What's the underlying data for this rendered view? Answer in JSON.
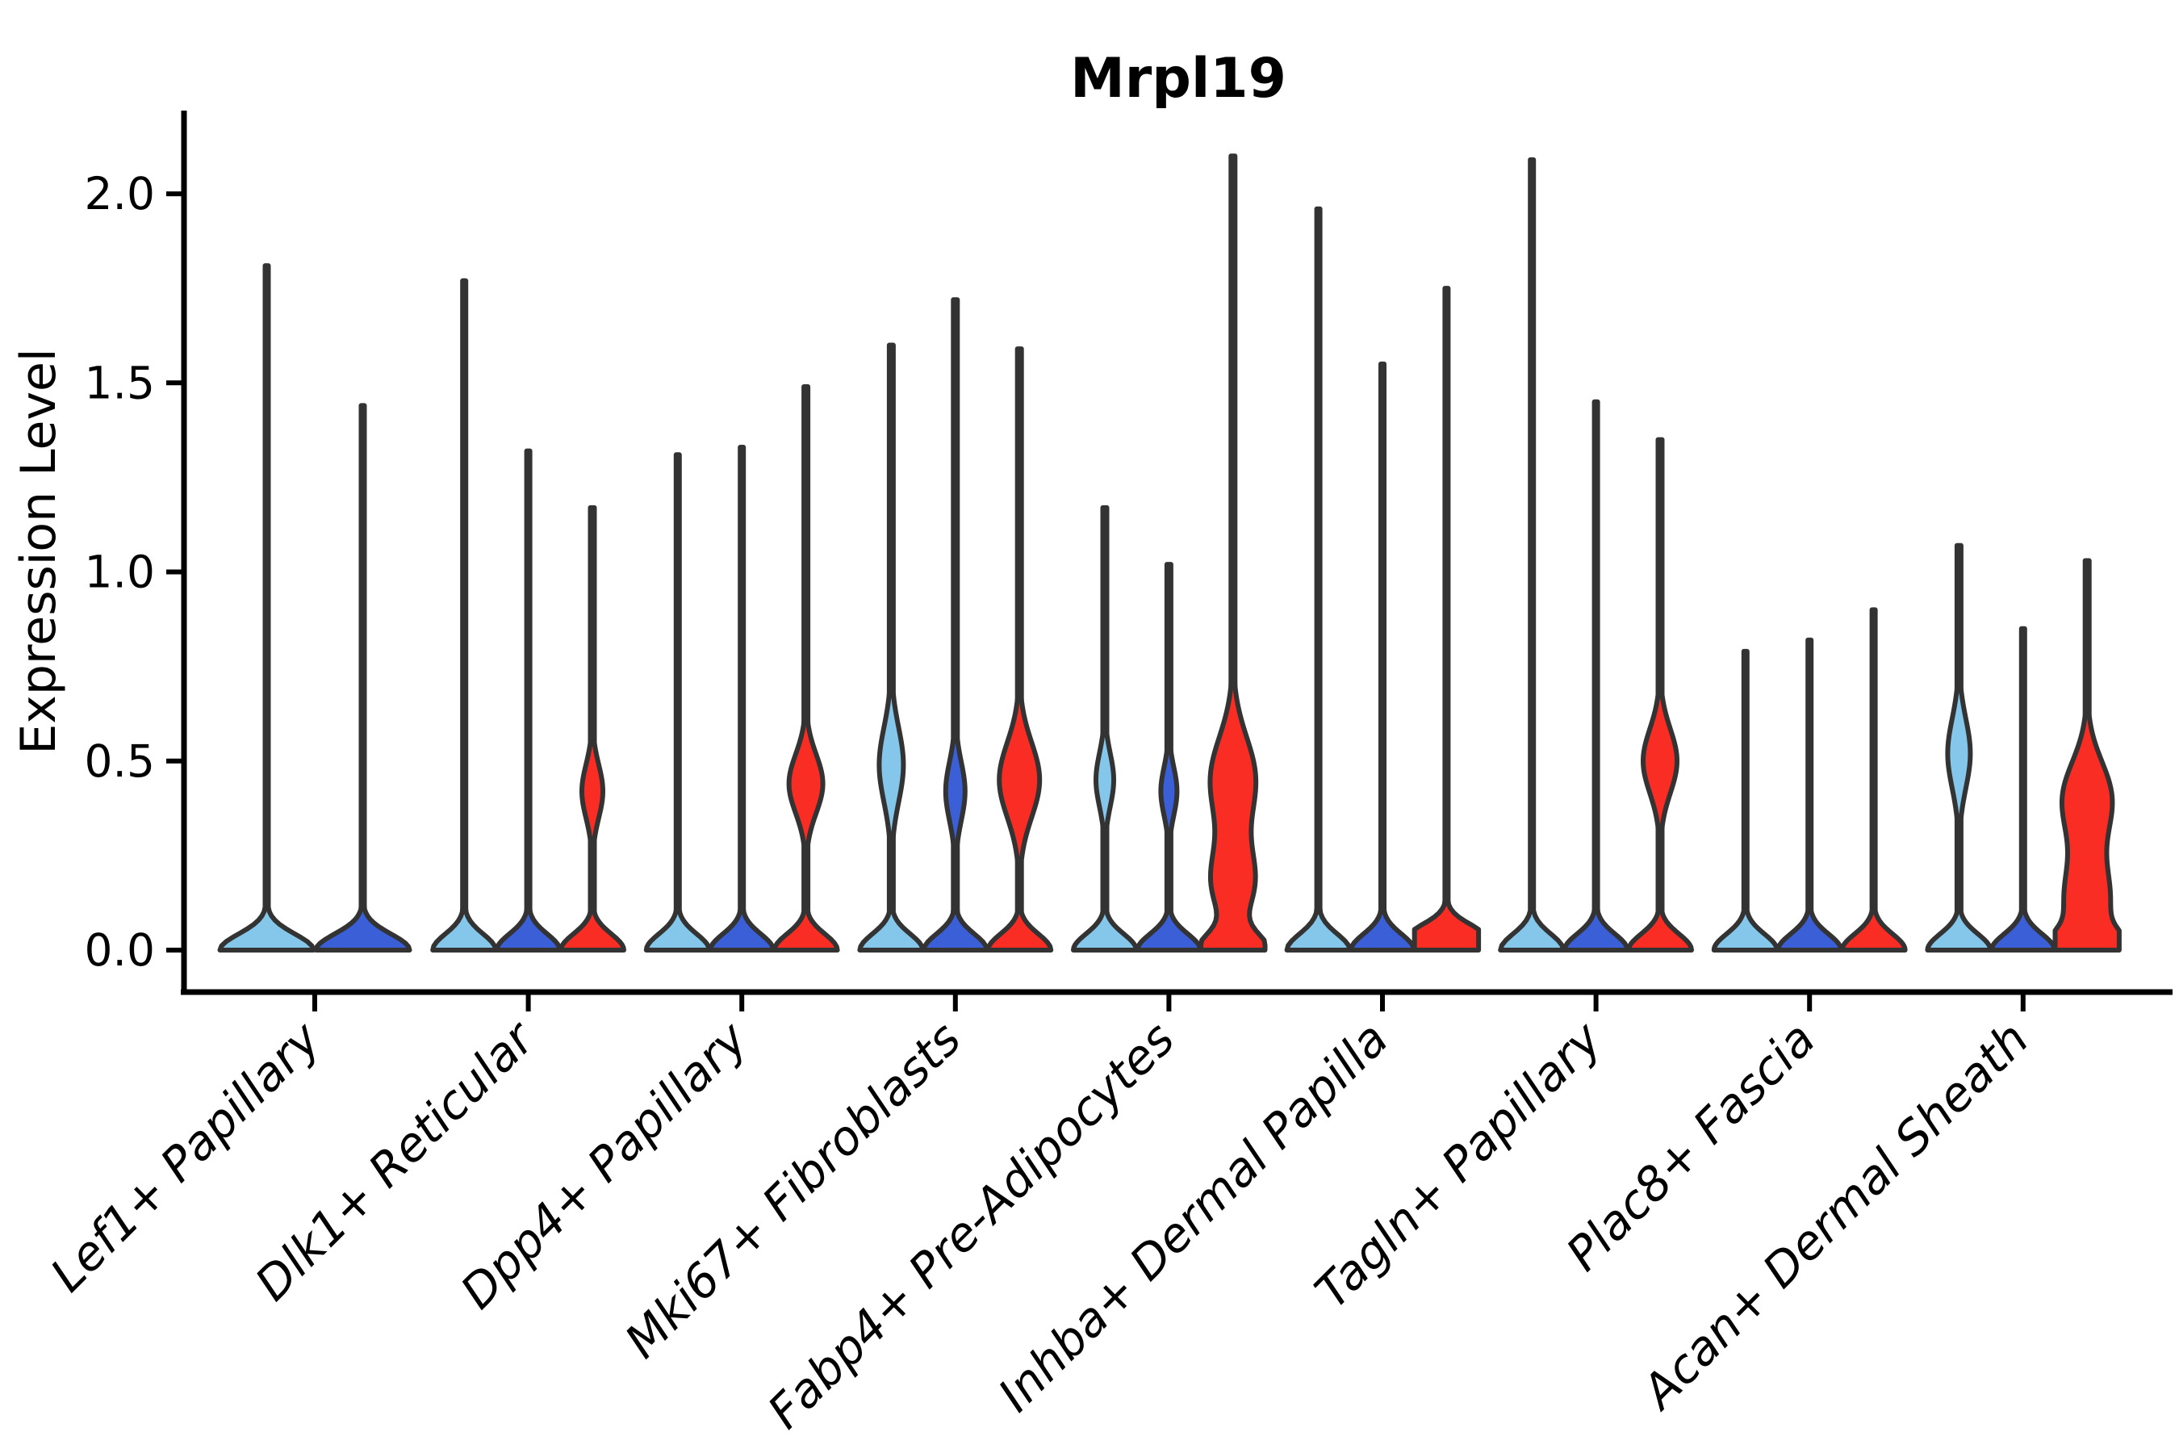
{
  "chart_data": {
    "type": "violin",
    "title": "Mrpl19",
    "ylabel": "Expression Level",
    "xlabel": "",
    "yticks": [
      0.0,
      0.5,
      1.0,
      1.5,
      2.0
    ],
    "ytick_labels": [
      "0.0",
      "0.5",
      "1.0",
      "1.5",
      "2.0"
    ],
    "ylim": [
      -0.111,
      2.22
    ],
    "grid": false,
    "legend": "none",
    "palette": {
      "lightblue": "#85C7EA",
      "darkblue": "#3A5FD6",
      "red": "#FA2D25",
      "outline": "#333333"
    },
    "groups": [
      {
        "label": "Lef1+ Papillary",
        "violins": [
          {
            "color": "lightblue",
            "max": 1.81,
            "base": 58,
            "spine": 2,
            "bulges": []
          },
          {
            "color": "darkblue",
            "max": 1.44,
            "base": 58,
            "spine": 2,
            "bulges": []
          }
        ]
      },
      {
        "label": "Dlk1+ Reticular",
        "violins": [
          {
            "color": "lightblue",
            "max": 1.77,
            "base": 39,
            "spine": 2,
            "bulges": []
          },
          {
            "color": "darkblue",
            "max": 1.32,
            "base": 39,
            "spine": 2,
            "bulges": []
          },
          {
            "color": "red",
            "max": 1.17,
            "base": 39,
            "spine": 2.5,
            "bulges": [
              {
                "c": 0.42,
                "hw": 13,
                "s": 0.1
              }
            ]
          }
        ]
      },
      {
        "label": "Dpp4+ Papillary",
        "violins": [
          {
            "color": "lightblue",
            "max": 1.31,
            "base": 39,
            "spine": 2,
            "bulges": []
          },
          {
            "color": "darkblue",
            "max": 1.33,
            "base": 39,
            "spine": 2,
            "bulges": []
          },
          {
            "color": "red",
            "max": 1.49,
            "base": 39,
            "spine": 2.5,
            "bulges": [
              {
                "c": 0.44,
                "hw": 21,
                "s": 0.11
              }
            ]
          }
        ]
      },
      {
        "label": "Mki67+ Fibroblasts",
        "violins": [
          {
            "color": "lightblue",
            "max": 1.6,
            "base": 39,
            "spine": 2.5,
            "bulges": [
              {
                "c": 0.49,
                "hw": 15,
                "s": 0.14
              }
            ]
          },
          {
            "color": "darkblue",
            "max": 1.72,
            "base": 39,
            "spine": 2.5,
            "bulges": [
              {
                "c": 0.42,
                "hw": 12,
                "s": 0.11
              }
            ]
          },
          {
            "color": "red",
            "max": 1.59,
            "base": 39,
            "spine": 2.5,
            "bulges": [
              {
                "c": 0.45,
                "hw": 25,
                "s": 0.14
              }
            ]
          }
        ]
      },
      {
        "label": "Fabp4+ Pre-Adipocytes",
        "violins": [
          {
            "color": "lightblue",
            "max": 1.17,
            "base": 39,
            "spine": 2.5,
            "bulges": [
              {
                "c": 0.45,
                "hw": 11,
                "s": 0.1
              }
            ]
          },
          {
            "color": "darkblue",
            "max": 1.02,
            "base": 39,
            "spine": 2.5,
            "bulges": [
              {
                "c": 0.42,
                "hw": 10,
                "s": 0.09
              }
            ]
          },
          {
            "color": "red",
            "max": 2.1,
            "base": 39,
            "spine": 2.5,
            "bulges": [
              {
                "c": 0.18,
                "hw": 26,
                "s": 0.13
              },
              {
                "c": 0.45,
                "hw": 28,
                "s": 0.16
              }
            ]
          }
        ]
      },
      {
        "label": "Inhba+ Dermal Papilla",
        "violins": [
          {
            "color": "lightblue",
            "max": 1.96,
            "base": 39,
            "spine": 2,
            "bulges": []
          },
          {
            "color": "darkblue",
            "max": 1.55,
            "base": 39,
            "spine": 2,
            "bulges": []
          },
          {
            "color": "red",
            "max": 1.75,
            "base": 39,
            "spine": 2,
            "bulges": [
              {
                "c": 0.04,
                "hw": 26,
                "s": 0.05
              }
            ]
          }
        ]
      },
      {
        "label": "Tagln+ Papillary",
        "violins": [
          {
            "color": "lightblue",
            "max": 2.09,
            "base": 39,
            "spine": 2,
            "bulges": []
          },
          {
            "color": "darkblue",
            "max": 1.45,
            "base": 39,
            "spine": 2,
            "bulges": []
          },
          {
            "color": "red",
            "max": 1.35,
            "base": 39,
            "spine": 2.5,
            "bulges": [
              {
                "c": 0.5,
                "hw": 21,
                "s": 0.12
              }
            ]
          }
        ]
      },
      {
        "label": "Plac8+ Fascia",
        "violins": [
          {
            "color": "lightblue",
            "max": 0.79,
            "base": 39,
            "spine": 2,
            "bulges": []
          },
          {
            "color": "darkblue",
            "max": 0.82,
            "base": 39,
            "spine": 2,
            "bulges": []
          },
          {
            "color": "red",
            "max": 0.9,
            "base": 39,
            "spine": 2,
            "bulges": []
          }
        ]
      },
      {
        "label": "Acan+ Dermal Sheath",
        "violins": [
          {
            "color": "lightblue",
            "max": 1.07,
            "base": 39,
            "spine": 2.5,
            "bulges": [
              {
                "c": 0.52,
                "hw": 14,
                "s": 0.13
              }
            ]
          },
          {
            "color": "darkblue",
            "max": 0.85,
            "base": 39,
            "spine": 2,
            "bulges": []
          },
          {
            "color": "red",
            "max": 1.03,
            "base": 39,
            "spine": 2.5,
            "bulges": [
              {
                "c": 0.13,
                "hw": 28,
                "s": 0.15
              },
              {
                "c": 0.4,
                "hw": 30,
                "s": 0.14
              }
            ]
          }
        ]
      }
    ]
  }
}
